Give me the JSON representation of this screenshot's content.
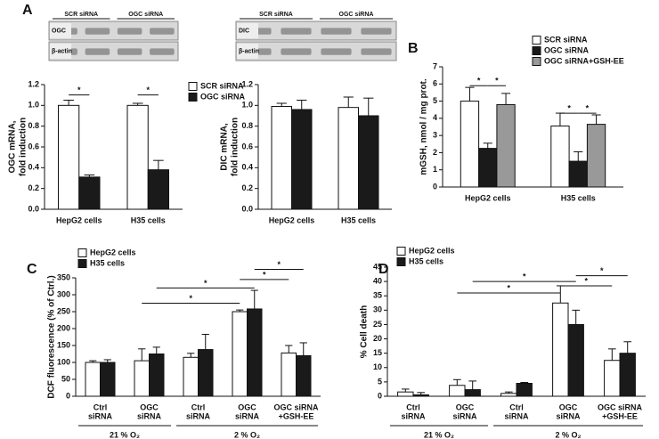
{
  "chart_data": [
    {
      "type": "bar",
      "panel": "A",
      "blot": {
        "lanes": [
          "SCR siRNA",
          "OGC siRNA"
        ],
        "rows": [
          "OGC",
          "β-actin"
        ]
      },
      "ylabel": [
        "OGC mRNA,",
        "fold induction"
      ],
      "categories": [
        [
          "HepG2 cells"
        ],
        [
          "H35 cells"
        ]
      ],
      "series": [
        {
          "name": "SCR siRNA",
          "color": "#ffffff",
          "values": [
            1.0,
            1.0
          ],
          "errors": [
            0.05,
            0.02
          ]
        },
        {
          "name": "OGC siRNA",
          "color": "#1a1a1a",
          "values": [
            0.31,
            0.38
          ],
          "errors": [
            0.02,
            0.09
          ]
        }
      ],
      "ylim": [
        0,
        1.2
      ],
      "yticks": [
        {
          "value": 0,
          "label": "0.0"
        },
        0.2,
        0.4,
        0.6,
        0.8,
        {
          "value": 1,
          "label": "1.0"
        },
        1.2
      ],
      "annotations": [
        "*",
        "*"
      ]
    },
    {
      "type": "bar",
      "blot": {
        "lanes": [
          "SCR siRNA",
          "OGC siRNA"
        ],
        "rows": [
          "DIC",
          "β-actin"
        ]
      },
      "ylabel": [
        "DIC mRNA,",
        "fold induction"
      ],
      "categories": [
        [
          "HepG2 cells"
        ],
        [
          "H35 cells"
        ]
      ],
      "series": [
        {
          "color": "#ffffff",
          "values": [
            0.99,
            0.98
          ],
          "errors": [
            0.03,
            0.1
          ]
        },
        {
          "color": "#1a1a1a",
          "values": [
            0.96,
            0.9
          ],
          "errors": [
            0.09,
            0.17
          ]
        }
      ],
      "ylim": [
        0,
        1.2
      ],
      "yticks": [
        {
          "value": 0,
          "label": "0.0"
        },
        0.2,
        0.4,
        0.6,
        0.8,
        {
          "value": 1,
          "label": "1.0"
        },
        1.2
      ]
    },
    {
      "type": "bar",
      "panel": "B",
      "ylabel": [
        "mGSH, nmol / mg prot."
      ],
      "categories": [
        [
          "HepG2 cells"
        ],
        [
          "H35 cells"
        ]
      ],
      "series": [
        {
          "name": "SCR siRNA",
          "color": "#ffffff",
          "values": [
            5.0,
            3.55
          ],
          "errors": [
            0.8,
            0.75
          ]
        },
        {
          "name": "OGC siRNA",
          "color": "#1a1a1a",
          "values": [
            2.25,
            1.5
          ],
          "errors": [
            0.3,
            0.55
          ]
        },
        {
          "name": "OGC siRNA+GSH-EE",
          "color": "#999999",
          "values": [
            4.8,
            3.65
          ],
          "errors": [
            0.65,
            0.55
          ]
        }
      ],
      "ylim": [
        0,
        7
      ],
      "yticks": [
        0,
        1,
        2,
        3,
        4,
        5,
        6,
        7
      ],
      "annotations": [
        "*",
        "*",
        "*",
        "*"
      ]
    },
    {
      "type": "bar",
      "panel": "C",
      "ylabel": [
        "DCF fluorescence (% of Ctrl.)"
      ],
      "categories": [
        [
          "Ctrl",
          "siRNA"
        ],
        [
          "OGC",
          "siRNA"
        ],
        [
          "Ctrl",
          "siRNA"
        ],
        [
          "OGC",
          "siRNA"
        ],
        [
          "OGC siRNA",
          "+GSH-EE"
        ]
      ],
      "groups": [
        "21 % O₂",
        "2 % O₂"
      ],
      "series": [
        {
          "name": "HepG2 cells",
          "color": "#ffffff",
          "values": [
            100,
            105,
            115,
            250,
            128
          ],
          "errors": [
            5,
            35,
            12,
            5,
            22
          ]
        },
        {
          "name": "H35 cells",
          "color": "#1a1a1a",
          "values": [
            100,
            125,
            138,
            258,
            120
          ],
          "errors": [
            8,
            20,
            45,
            55,
            38
          ]
        }
      ],
      "ylim": [
        0,
        350
      ],
      "yticks": [
        0,
        50,
        100,
        150,
        200,
        250,
        300,
        350
      ],
      "annotations": [
        "*",
        "*",
        "*",
        "*"
      ]
    },
    {
      "type": "bar",
      "panel": "D",
      "ylabel": [
        "% Cell death"
      ],
      "categories": [
        [
          "Ctrl",
          "siRNA"
        ],
        [
          "OGC",
          "siRNA"
        ],
        [
          "Ctrl",
          "siRNA"
        ],
        [
          "OGC",
          "siRNA"
        ],
        [
          "OGC siRNA",
          "+GSH-EE"
        ]
      ],
      "groups": [
        "21 % O₂",
        "2 % O₂"
      ],
      "series": [
        {
          "name": "HepG2 cells",
          "color": "#ffffff",
          "values": [
            1.5,
            3.8,
            1.0,
            32.5,
            12.5
          ],
          "errors": [
            1,
            2,
            0.5,
            6,
            4
          ]
        },
        {
          "name": "H35 cells",
          "color": "#1a1a1a",
          "values": [
            0.5,
            2.3,
            4.5,
            25,
            15
          ],
          "errors": [
            0.8,
            3,
            0.3,
            5,
            4
          ]
        }
      ],
      "ylim": [
        0,
        45
      ],
      "yticks": [
        0,
        5,
        10,
        15,
        20,
        25,
        30,
        35,
        40,
        45
      ],
      "annotations": [
        "*",
        "*",
        "*",
        "*"
      ]
    }
  ]
}
